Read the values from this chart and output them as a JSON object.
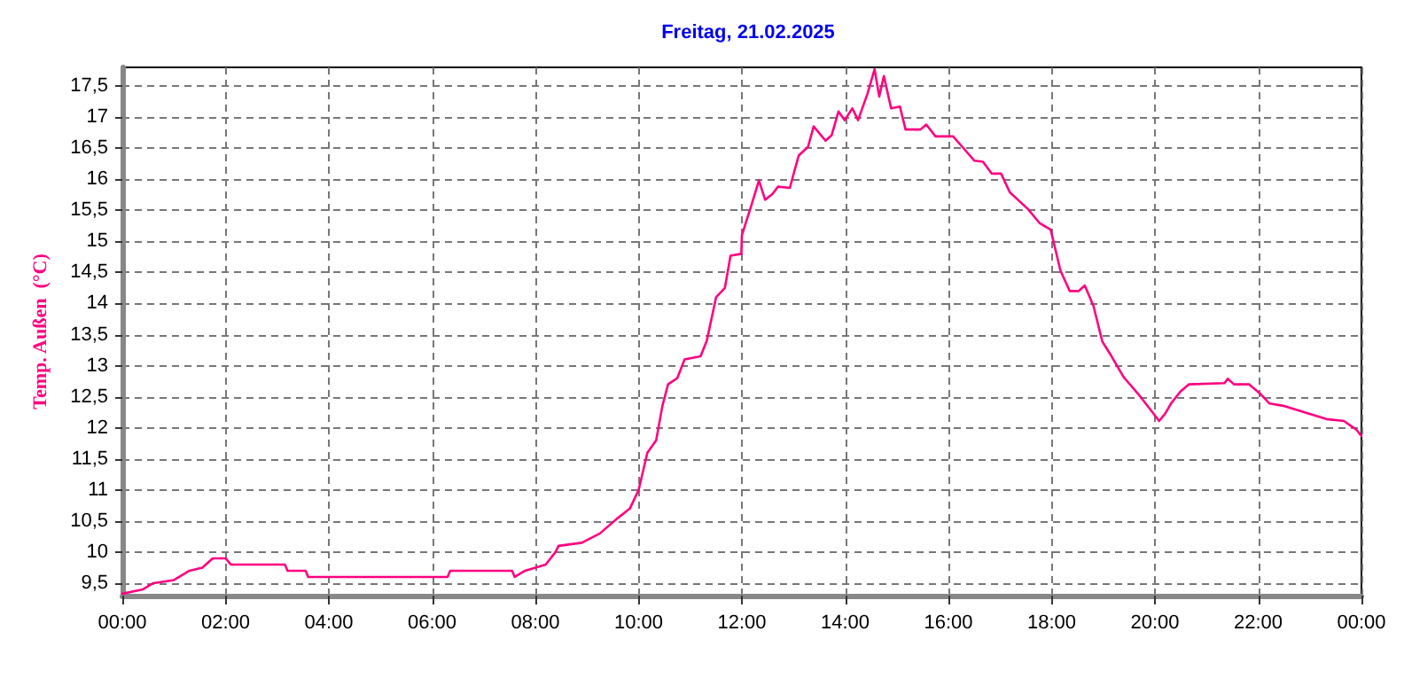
{
  "chart_data": {
    "type": "line",
    "title": "Freitag, 21.02.2025",
    "ylabel": "Temp. Außen  (°C)",
    "grid": true,
    "marker": "none",
    "line_style": "solid",
    "xlim": [
      0,
      24
    ],
    "xticks": [
      {
        "value": 0,
        "label": "00:00"
      },
      {
        "value": 2,
        "label": "02:00"
      },
      {
        "value": 4,
        "label": "04:00"
      },
      {
        "value": 6,
        "label": "06:00"
      },
      {
        "value": 8,
        "label": "08:00"
      },
      {
        "value": 10,
        "label": "10:00"
      },
      {
        "value": 12,
        "label": "12:00"
      },
      {
        "value": 14,
        "label": "14:00"
      },
      {
        "value": 16,
        "label": "16:00"
      },
      {
        "value": 18,
        "label": "18:00"
      },
      {
        "value": 20,
        "label": "20:00"
      },
      {
        "value": 22,
        "label": "22:00"
      },
      {
        "value": 24,
        "label": "00:00"
      }
    ],
    "ylim": [
      9.3,
      17.8
    ],
    "yticks": [
      {
        "value": 9.5,
        "label": "9,5"
      },
      10,
      {
        "value": 10.5,
        "label": "10,5"
      },
      11,
      {
        "value": 11.5,
        "label": "11,5"
      },
      12,
      {
        "value": 12.5,
        "label": "12,5"
      },
      13,
      {
        "value": 13.5,
        "label": "13,5"
      },
      14,
      {
        "value": 14.5,
        "label": "14,5"
      },
      15,
      {
        "value": 15.5,
        "label": "15,5"
      },
      16,
      {
        "value": 16.5,
        "label": "16,5"
      },
      17,
      {
        "value": 17.5,
        "label": "17,5"
      }
    ],
    "series": [
      {
        "color": "#ff0080",
        "x": [
          0,
          0.4,
          0.6,
          1.0,
          1.3,
          1.55,
          1.75,
          2.0,
          2.1,
          3.15,
          3.2,
          3.55,
          3.6,
          6.3,
          6.35,
          7.0,
          7.55,
          7.6,
          7.8,
          8.2,
          8.39,
          8.45,
          8.9,
          9.25,
          9.6,
          9.83,
          10.0,
          10.17,
          10.34,
          10.46,
          10.57,
          10.75,
          10.89,
          11.2,
          11.32,
          11.5,
          11.67,
          11.78,
          11.99,
          12.0,
          12.18,
          12.33,
          12.45,
          12.59,
          12.7,
          12.93,
          12.99,
          13.1,
          13.28,
          13.39,
          13.62,
          13.74,
          13.87,
          13.99,
          14.14,
          14.25,
          14.43,
          14.57,
          14.66,
          14.75,
          14.89,
          15.06,
          15.17,
          15.46,
          15.57,
          15.75,
          16.09,
          16.27,
          16.5,
          16.67,
          16.84,
          17.02,
          17.19,
          17.54,
          17.77,
          17.98,
          18.17,
          18.35,
          18.52,
          18.64,
          18.81,
          18.98,
          19.16,
          19.39,
          19.68,
          19.97,
          20.08,
          20.2,
          20.31,
          20.49,
          20.66,
          21.35,
          21.41,
          21.53,
          21.82,
          22.05,
          22.22,
          22.51,
          22.97,
          23.32,
          23.66,
          23.9,
          24.0
        ],
        "values": [
          9.33,
          9.4,
          9.5,
          9.55,
          9.7,
          9.75,
          9.9,
          9.9,
          9.8,
          9.8,
          9.7,
          9.7,
          9.6,
          9.6,
          9.7,
          9.7,
          9.7,
          9.6,
          9.7,
          9.8,
          10.0,
          10.1,
          10.15,
          10.3,
          10.55,
          10.7,
          11.0,
          11.6,
          11.8,
          12.35,
          12.7,
          12.8,
          13.1,
          13.15,
          13.4,
          14.1,
          14.25,
          14.77,
          14.8,
          15.1,
          15.57,
          15.98,
          15.67,
          15.76,
          15.88,
          15.86,
          16.05,
          16.38,
          16.52,
          16.85,
          16.62,
          16.71,
          17.09,
          16.95,
          17.14,
          16.95,
          17.37,
          17.77,
          17.33,
          17.66,
          17.14,
          17.17,
          16.8,
          16.8,
          16.88,
          16.69,
          16.69,
          16.52,
          16.3,
          16.28,
          16.09,
          16.09,
          15.79,
          15.52,
          15.29,
          15.19,
          14.53,
          14.2,
          14.2,
          14.29,
          13.96,
          13.39,
          13.15,
          12.82,
          12.54,
          12.23,
          12.11,
          12.23,
          12.39,
          12.58,
          12.7,
          12.72,
          12.79,
          12.7,
          12.7,
          12.54,
          12.39,
          12.35,
          12.23,
          12.14,
          12.11,
          11.97,
          11.87
        ]
      }
    ]
  }
}
